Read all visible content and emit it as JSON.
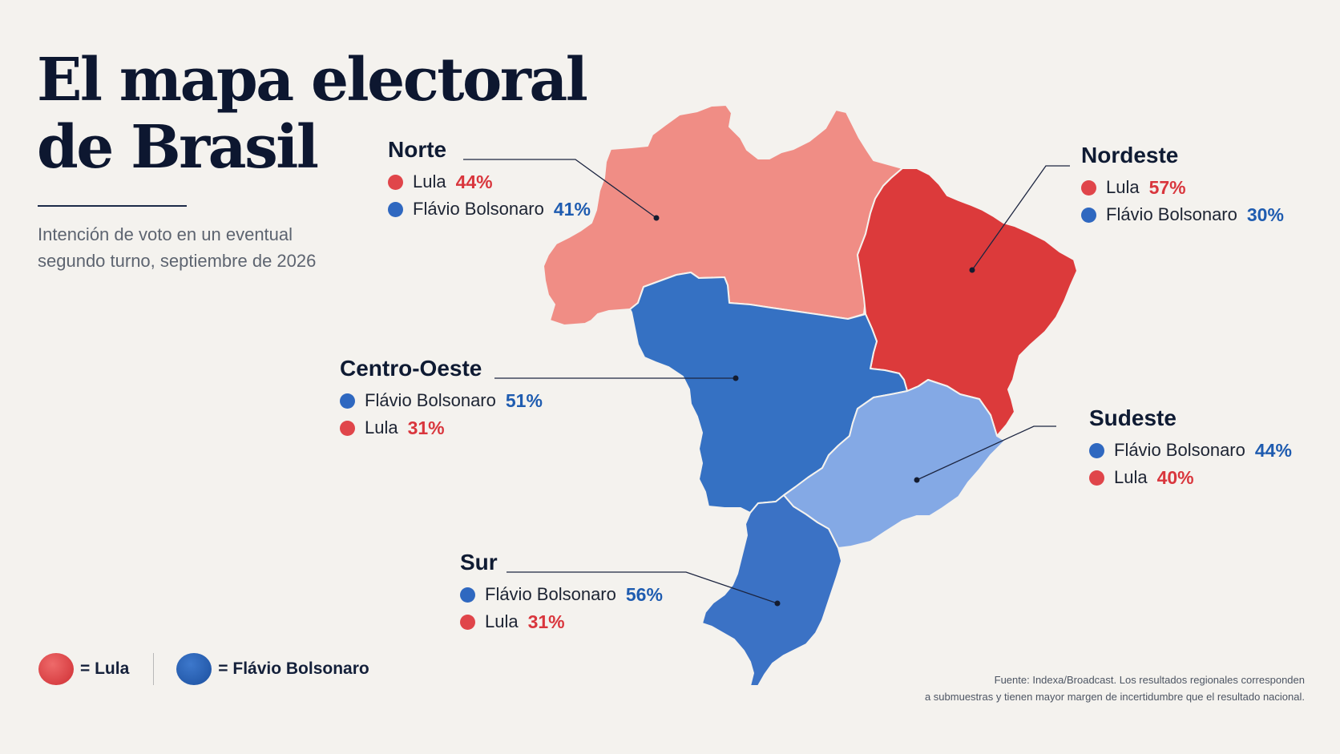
{
  "title": {
    "line1": "El mapa electoral",
    "line2": "de Brasil"
  },
  "subtitle": {
    "line1": "Intención de voto en un eventual",
    "line2": "segundo turno, septiembre de 2026"
  },
  "colors": {
    "lula": "#e0454a",
    "bolsonaro": "#2f68c0",
    "norte_fill": "#f08d85",
    "nordeste_fill": "#dc3a3b",
    "centro_oeste_fill": "#3571c3",
    "sudeste_fill": "#84a9e5",
    "sur_fill": "#3b72c5"
  },
  "regions": [
    {
      "id": "norte",
      "name": "Norte",
      "winner": "lula",
      "results": [
        {
          "candidate": "Lula",
          "party": "lula",
          "pct": "44%"
        },
        {
          "candidate": "Flávio Bolsonaro",
          "party": "bolsonaro",
          "pct": "41%"
        }
      ]
    },
    {
      "id": "nordeste",
      "name": "Nordeste",
      "winner": "lula",
      "results": [
        {
          "candidate": "Lula",
          "party": "lula",
          "pct": "57%"
        },
        {
          "candidate": "Flávio Bolsonaro",
          "party": "bolsonaro",
          "pct": "30%"
        }
      ]
    },
    {
      "id": "centro-oeste",
      "name": "Centro-Oeste",
      "winner": "bolsonaro",
      "results": [
        {
          "candidate": "Flávio Bolsonaro",
          "party": "bolsonaro",
          "pct": "51%"
        },
        {
          "candidate": "Lula",
          "party": "lula",
          "pct": "31%"
        }
      ]
    },
    {
      "id": "sudeste",
      "name": "Sudeste",
      "winner": "bolsonaro",
      "results": [
        {
          "candidate": "Flávio Bolsonaro",
          "party": "bolsonaro",
          "pct": "44%"
        },
        {
          "candidate": "Lula",
          "party": "lula",
          "pct": "40%"
        }
      ]
    },
    {
      "id": "sur",
      "name": "Sur",
      "winner": "bolsonaro",
      "results": [
        {
          "candidate": "Flávio Bolsonaro",
          "party": "bolsonaro",
          "pct": "56%"
        },
        {
          "candidate": "Lula",
          "party": "lula",
          "pct": "31%"
        }
      ]
    }
  ],
  "legend": {
    "lula": "= Lula",
    "bolsonaro": "= Flávio Bolsonaro"
  },
  "source": {
    "line1": "Fuente: Indexa/Broadcast. Los resultados regionales corresponden",
    "line2": "a submuestras y tienen mayor margen de incertidumbre que el resultado nacional."
  }
}
